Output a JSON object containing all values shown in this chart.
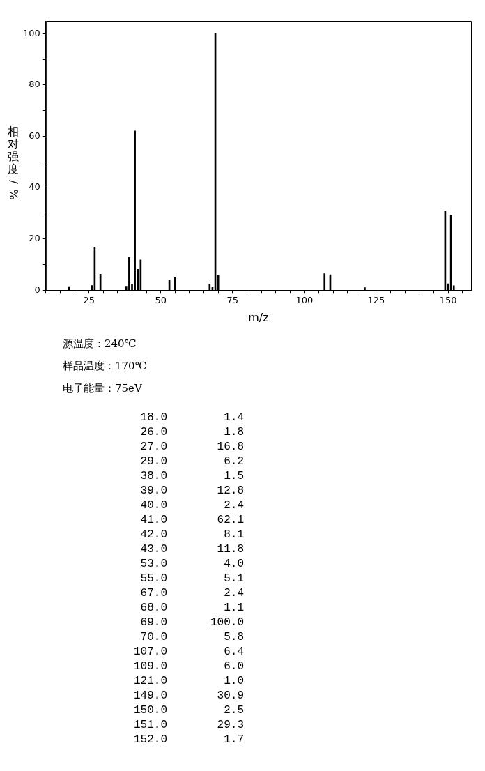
{
  "chart_data": [
    {
      "type": "bar",
      "xlabel": "m/z",
      "ylabel": "相对强度/%",
      "x": [
        18,
        26,
        27,
        29,
        38,
        39,
        40,
        41,
        42,
        43,
        53,
        55,
        67,
        68,
        69,
        70,
        107,
        109,
        121,
        149,
        150,
        151,
        152
      ],
      "values": [
        1.4,
        1.8,
        16.8,
        6.2,
        1.5,
        12.8,
        2.4,
        62.1,
        8.1,
        11.8,
        4.0,
        5.1,
        2.4,
        1.1,
        100.0,
        5.8,
        6.4,
        6.0,
        1.0,
        30.9,
        2.5,
        29.3,
        1.7
      ],
      "color": "#000000",
      "xlim": [
        10,
        158
      ],
      "xticks": [
        {
          "value": 10,
          "label": null
        },
        {
          "value": 15,
          "label": null
        },
        {
          "value": 20,
          "label": null
        },
        25,
        {
          "value": 30,
          "label": null
        },
        {
          "value": 35,
          "label": null
        },
        {
          "value": 40,
          "label": null
        },
        {
          "value": 45,
          "label": null
        },
        50,
        {
          "value": 55,
          "label": null
        },
        {
          "value": 60,
          "label": null
        },
        {
          "value": 65,
          "label": null
        },
        {
          "value": 70,
          "label": null
        },
        75,
        {
          "value": 80,
          "label": null
        },
        {
          "value": 85,
          "label": null
        },
        {
          "value": 90,
          "label": null
        },
        {
          "value": 95,
          "label": null
        },
        100,
        {
          "value": 105,
          "label": null
        },
        {
          "value": 110,
          "label": null
        },
        {
          "value": 115,
          "label": null
        },
        {
          "value": 120,
          "label": null
        },
        125,
        {
          "value": 130,
          "label": null
        },
        {
          "value": 135,
          "label": null
        },
        {
          "value": 140,
          "label": null
        },
        {
          "value": 145,
          "label": null
        },
        150,
        {
          "value": 155,
          "label": null
        }
      ],
      "ylim": [
        0,
        105
      ],
      "yticks": [
        0,
        {
          "value": 10,
          "label": null
        },
        20,
        {
          "value": 30,
          "label": null
        },
        40,
        {
          "value": 50,
          "label": null
        },
        60,
        {
          "value": 70,
          "label": null
        },
        80,
        {
          "value": 90,
          "label": null
        },
        100
      ],
      "grid": false,
      "legend": false,
      "annotations": [
        "源温度：240℃",
        "样品温度：170℃",
        "电子能量：75eV"
      ]
    },
    {
      "type": "other",
      "annotations": [
        "18.0",
        "1.4",
        "26.0",
        "1.8",
        "27.0",
        "16.8",
        "29.0",
        "6.2",
        "38.0",
        "1.5",
        "39.0",
        "12.8",
        "40.0",
        "2.4",
        "41.0",
        "62.1",
        "42.0",
        "8.1",
        "43.0",
        "11.8",
        "53.0",
        "4.0",
        "55.0",
        "5.1",
        "67.0",
        "2.4",
        "68.0",
        "1.1",
        "69.0",
        "100.0",
        "70.0",
        "5.8",
        "107.0",
        "6.4",
        "109.0",
        "6.0",
        "121.0",
        "1.0",
        "149.0",
        "30.9",
        "150.0",
        "2.5",
        "151.0",
        "29.3",
        "152.0",
        "1.7"
      ]
    }
  ]
}
